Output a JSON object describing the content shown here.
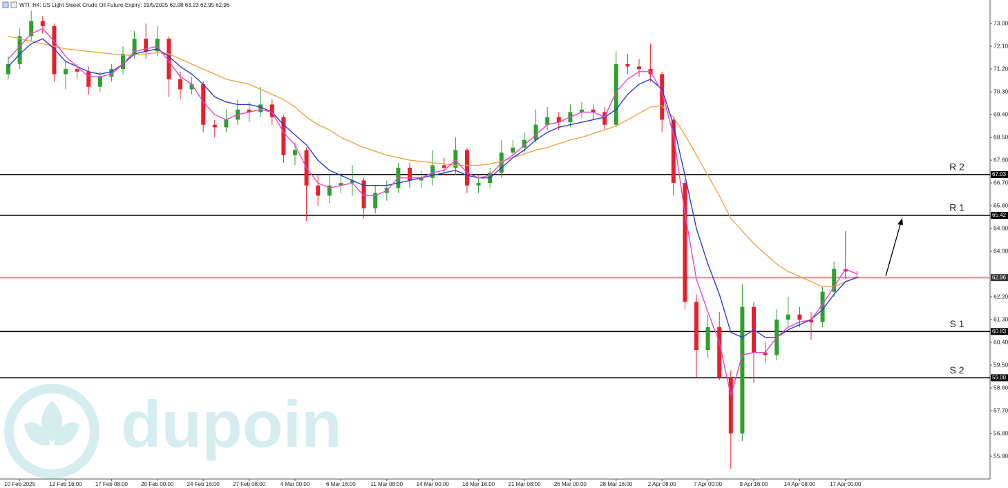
{
  "chart_data": {
    "type": "candlestick",
    "title": "WTI, H4: US Light Sweet Crude Oil Future-Expiry: 19/5/2025",
    "watermark": "dupoin",
    "categories": [
      null,
      "10 Feb 2025",
      null,
      null,
      null,
      "12 Feb 16:00",
      null,
      null,
      null,
      "17 Feb 08:00",
      null,
      null,
      null,
      "20 Feb 00:00",
      null,
      null,
      null,
      "24 Feb 16:00",
      null,
      null,
      null,
      "27 Feb 08:00",
      null,
      null,
      null,
      "4 Mar 00:00",
      null,
      null,
      null,
      "6 Mar 16:00",
      null,
      null,
      null,
      "11 Mar 08:00",
      null,
      null,
      null,
      "14 Mar 00:00",
      null,
      null,
      null,
      "18 Mar 16:00",
      null,
      null,
      null,
      "21 Mar 08:00",
      null,
      null,
      null,
      "26 Mar 00:00",
      null,
      null,
      null,
      "28 Mar 16:00",
      null,
      null,
      null,
      "2 Apr 08:00",
      null,
      null,
      null,
      "7 Apr 00:00",
      null,
      null,
      null,
      "9 Apr 16:00",
      null,
      null,
      null,
      "14 Apr 08:00",
      null,
      null,
      null,
      "17 Apr 00:00",
      null
    ],
    "open": [
      71.0,
      71.4,
      72.5,
      73.1,
      72.9,
      71.0,
      71.2,
      71.1,
      70.5,
      70.9,
      71.2,
      71.8,
      72.4,
      71.9,
      72.4,
      70.8,
      70.4,
      70.6,
      69.0,
      68.9,
      69.2,
      69.6,
      69.5,
      69.8,
      69.3,
      67.8,
      68.0,
      66.6,
      66.2,
      66.6,
      66.7,
      66.8,
      65.7,
      66.3,
      66.5,
      67.3,
      66.8,
      66.9,
      67.4,
      67.3,
      68.0,
      66.6,
      66.7,
      67.1,
      67.9,
      68.1,
      68.4,
      69.0,
      69.3,
      69.1,
      69.5,
      69.6,
      69.5,
      69.0,
      71.4,
      71.3,
      71.2,
      71.0,
      69.2,
      66.7,
      62.0,
      60.1,
      61.0,
      59.0,
      56.8,
      61.8,
      60.0,
      59.9,
      61.3,
      61.5,
      61.3,
      61.2,
      62.4,
      63.3,
      62.98
    ],
    "high": [
      71.7,
      72.8,
      73.5,
      73.3,
      73.0,
      71.5,
      71.4,
      71.3,
      71.1,
      71.4,
      72.1,
      72.7,
      73.0,
      72.9,
      72.5,
      71.1,
      70.9,
      70.7,
      69.2,
      69.6,
      70.0,
      69.9,
      70.5,
      70.0,
      69.4,
      68.3,
      68.1,
      67.0,
      67.0,
      67.1,
      67.4,
      66.9,
      66.6,
      66.8,
      67.5,
      67.5,
      67.2,
      68.0,
      67.7,
      68.5,
      68.1,
      67.0,
      67.3,
      68.4,
      68.4,
      68.7,
      69.6,
      69.7,
      69.5,
      69.8,
      69.9,
      69.8,
      69.7,
      71.9,
      71.8,
      71.6,
      72.2,
      71.1,
      69.3,
      66.8,
      62.3,
      61.5,
      61.6,
      59.3,
      62.7,
      62.0,
      60.4,
      61.7,
      62.2,
      61.8,
      61.6,
      62.6,
      63.6,
      64.8,
      63.23
    ],
    "low": [
      70.8,
      71.2,
      72.3,
      72.6,
      70.7,
      70.4,
      70.8,
      70.2,
      70.3,
      70.7,
      71.0,
      71.6,
      71.6,
      71.7,
      70.1,
      70.0,
      70.2,
      68.7,
      68.5,
      68.7,
      69.0,
      69.1,
      69.3,
      69.0,
      67.5,
      67.4,
      65.2,
      65.8,
      65.9,
      66.3,
      66.2,
      65.3,
      65.5,
      66.0,
      66.3,
      66.5,
      66.5,
      66.6,
      67.0,
      67.0,
      66.3,
      66.3,
      66.5,
      66.9,
      67.7,
      67.9,
      68.3,
      68.8,
      68.8,
      68.9,
      69.3,
      69.2,
      68.8,
      68.9,
      71.0,
      70.9,
      70.7,
      68.7,
      66.2,
      61.7,
      59.0,
      59.8,
      58.9,
      55.4,
      56.5,
      58.8,
      59.6,
      59.7,
      61.0,
      61.0,
      60.5,
      61.0,
      62.2,
      62.9,
      62.95
    ],
    "close": [
      71.4,
      72.5,
      73.1,
      72.9,
      71.0,
      71.2,
      71.1,
      70.5,
      70.9,
      71.2,
      71.8,
      72.4,
      71.9,
      72.4,
      70.8,
      70.4,
      70.6,
      69.0,
      68.9,
      69.2,
      69.6,
      69.5,
      69.8,
      69.3,
      67.8,
      68.0,
      66.6,
      66.2,
      66.6,
      66.7,
      66.8,
      65.7,
      66.3,
      66.5,
      67.3,
      66.8,
      66.9,
      67.4,
      67.3,
      68.0,
      66.6,
      66.7,
      67.1,
      67.9,
      68.1,
      68.4,
      69.0,
      69.3,
      69.1,
      69.5,
      69.6,
      69.5,
      69.0,
      71.4,
      71.3,
      71.2,
      71.0,
      69.2,
      66.7,
      62.0,
      60.1,
      61.0,
      59.0,
      56.8,
      61.8,
      60.0,
      59.9,
      61.3,
      61.5,
      61.3,
      61.2,
      62.4,
      63.3,
      63.2,
      62.96
    ],
    "up_color": "#2ea02e",
    "down_color": "#e8202c",
    "lines": [
      {
        "color": "#f7a040",
        "values": [
          72.5,
          72.4,
          72.3,
          72.2,
          72.1,
          72.0,
          71.95,
          71.9,
          71.85,
          71.8,
          71.75,
          71.75,
          71.8,
          71.85,
          71.8,
          71.6,
          71.4,
          71.2,
          71.0,
          70.8,
          70.7,
          70.6,
          70.4,
          70.2,
          70.0,
          69.7,
          69.3,
          69.0,
          68.8,
          68.5,
          68.3,
          68.1,
          67.95,
          67.8,
          67.7,
          67.6,
          67.55,
          67.5,
          67.45,
          67.4,
          67.4,
          67.4,
          67.45,
          67.55,
          67.7,
          67.85,
          68.0,
          68.1,
          68.25,
          68.4,
          68.5,
          68.65,
          68.8,
          68.95,
          69.2,
          69.45,
          69.7,
          69.75,
          69.3,
          68.6,
          67.8,
          67.0,
          66.2,
          65.3,
          64.8,
          64.3,
          63.9,
          63.5,
          63.2,
          63.0,
          62.8,
          62.6,
          62.6,
          62.8,
          62.96
        ]
      },
      {
        "color": "#2a3ad8",
        "values": [
          71.3,
          71.8,
          72.2,
          72.4,
          72.0,
          71.5,
          71.3,
          71.1,
          71.0,
          71.1,
          71.4,
          71.8,
          71.9,
          72.0,
          71.7,
          71.3,
          71.0,
          70.6,
          70.1,
          69.9,
          69.8,
          69.8,
          69.7,
          69.5,
          69.0,
          68.6,
          68.2,
          67.6,
          67.2,
          67.0,
          66.8,
          66.6,
          66.6,
          66.6,
          66.7,
          66.8,
          66.9,
          67.0,
          67.1,
          67.2,
          67.0,
          66.9,
          66.9,
          67.3,
          67.7,
          68.0,
          68.4,
          68.7,
          68.9,
          69.0,
          69.1,
          69.2,
          69.3,
          69.6,
          70.2,
          70.6,
          70.8,
          70.4,
          69.0,
          67.0,
          64.9,
          63.5,
          62.3,
          60.8,
          60.6,
          60.9,
          60.6,
          60.6,
          60.9,
          61.1,
          61.3,
          61.7,
          62.3,
          62.8,
          62.96
        ]
      },
      {
        "color": "#f040c8",
        "values": [
          71.6,
          72.1,
          72.6,
          72.8,
          72.3,
          71.7,
          71.3,
          70.9,
          70.9,
          71.0,
          71.4,
          71.9,
          72.0,
          72.1,
          71.5,
          70.9,
          70.6,
          69.9,
          69.4,
          69.2,
          69.4,
          69.5,
          69.6,
          69.5,
          68.7,
          68.2,
          67.3,
          66.7,
          66.5,
          66.6,
          66.7,
          66.2,
          66.2,
          66.4,
          66.9,
          66.9,
          66.9,
          67.1,
          67.2,
          67.6,
          67.1,
          66.9,
          67.0,
          67.5,
          67.8,
          68.2,
          68.6,
          69.0,
          69.1,
          69.3,
          69.5,
          69.5,
          69.3,
          70.3,
          70.8,
          71.1,
          71.1,
          70.3,
          68.6,
          65.5,
          62.9,
          61.6,
          60.4,
          58.3,
          59.9,
          60.0,
          60.0,
          60.6,
          61.0,
          61.2,
          61.3,
          61.9,
          62.6,
          63.3,
          63.1
        ]
      }
    ],
    "levels": [
      {
        "name": "R 2",
        "value": 67.03,
        "value_label": "67.03",
        "color": "#000000"
      },
      {
        "name": "R 1",
        "value": 65.42,
        "value_label": "65.42",
        "color": "#000000"
      },
      {
        "value": 62.96,
        "value_label": "62.96",
        "color": "#e89a9a"
      },
      {
        "name": "S 1",
        "value": 60.83,
        "value_label": "60.83",
        "color": "#000000"
      },
      {
        "name": "S 2",
        "value": 59.0,
        "value_label": "59.00",
        "color": "#000000"
      }
    ],
    "ylim": [
      55.0,
      73.93
    ],
    "yticks": [
      {
        "value": 73,
        "label": "73.00"
      },
      {
        "value": 72.1,
        "label": "72.10"
      },
      {
        "value": 71.2,
        "label": "71.20"
      },
      {
        "value": 70.3,
        "label": "70.30"
      },
      {
        "value": 69.4,
        "label": "69.40"
      },
      {
        "value": 68.5,
        "label": "68.50"
      },
      {
        "value": 67.6,
        "label": "67.60"
      },
      {
        "value": 66.7,
        "label": "66.70"
      },
      {
        "value": 65.8,
        "label": "65.80"
      },
      {
        "value": 64.9,
        "label": "64.90"
      },
      {
        "value": 64,
        "label": "64.00"
      },
      {
        "value": 62.2,
        "label": "62.20"
      },
      {
        "value": 61.3,
        "label": "61.30"
      },
      {
        "value": 60.4,
        "label": "60.40"
      },
      {
        "value": 59.5,
        "label": "59.50"
      },
      {
        "value": 58.6,
        "label": "58.60"
      },
      {
        "value": 57.7,
        "label": "57.70"
      },
      {
        "value": 56.8,
        "label": "56.80"
      },
      {
        "value": 55.9,
        "label": "55.90"
      }
    ]
  }
}
